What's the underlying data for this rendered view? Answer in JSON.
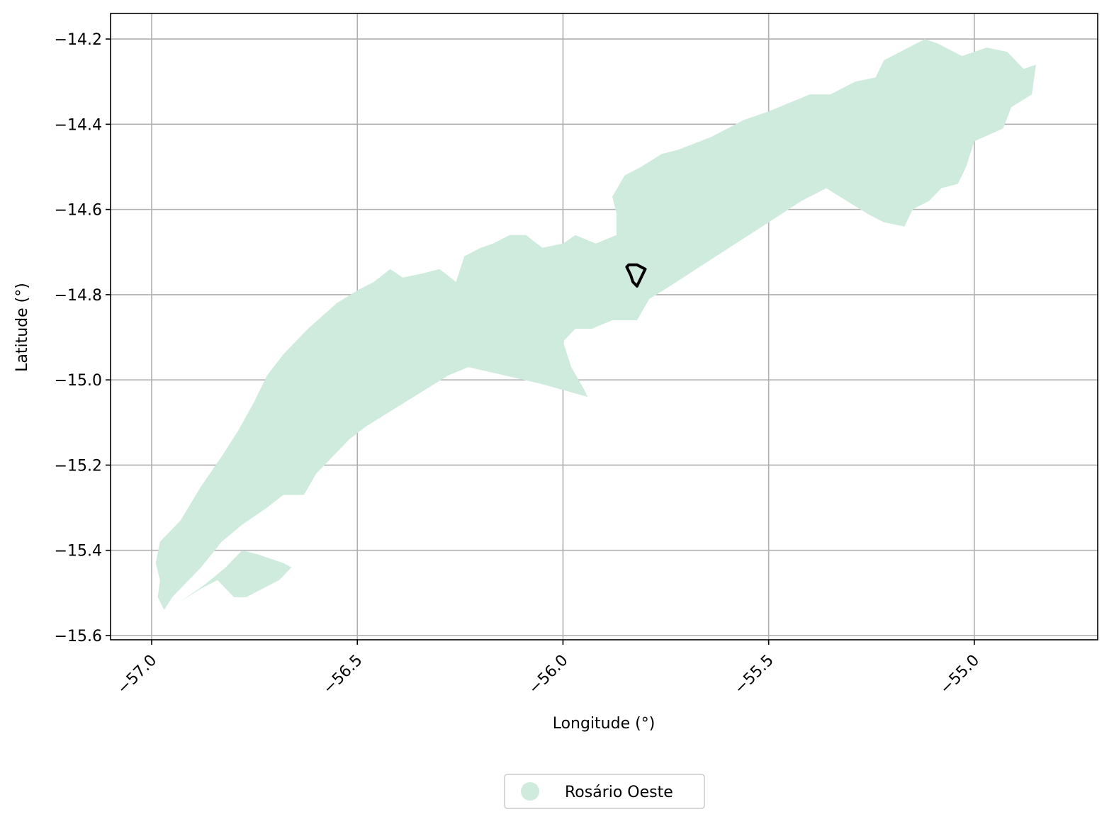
{
  "chart_data": {
    "type": "map",
    "xlabel": "Longitude (°)",
    "ylabel": "Latitude (°)",
    "xlim": [
      -57.1,
      -54.7
    ],
    "ylim": [
      -15.61,
      -14.14
    ],
    "grid": true,
    "x_ticks": [
      -57.0,
      -56.5,
      -56.0,
      -55.5,
      -55.0
    ],
    "x_tick_labels": [
      "−57.0",
      "−56.5",
      "−56.0",
      "−55.5",
      "−55.0"
    ],
    "y_ticks": [
      -14.2,
      -14.4,
      -14.6,
      -14.8,
      -15.0,
      -15.2,
      -15.4,
      -15.6
    ],
    "y_tick_labels": [
      "−14.2",
      "−14.4",
      "−14.6",
      "−14.8",
      "−15.0",
      "−15.2",
      "−15.4",
      "−15.6"
    ],
    "legend": {
      "placement": "bottom-center",
      "entries": [
        {
          "label": "Rosário Oeste",
          "color": "#cfebdd"
        }
      ]
    },
    "regions": [
      {
        "name": "Rosário Oeste",
        "fill": "#cfebdd",
        "polygons": [
          [
            [
              -56.97,
              -15.54
            ],
            [
              -56.985,
              -15.51
            ],
            [
              -56.98,
              -15.47
            ],
            [
              -56.99,
              -15.43
            ],
            [
              -56.98,
              -15.38
            ],
            [
              -56.93,
              -15.33
            ],
            [
              -56.88,
              -15.25
            ],
            [
              -56.83,
              -15.18
            ],
            [
              -56.79,
              -15.12
            ],
            [
              -56.75,
              -15.05
            ],
            [
              -56.72,
              -14.99
            ],
            [
              -56.68,
              -14.94
            ],
            [
              -56.62,
              -14.88
            ],
            [
              -56.55,
              -14.82
            ],
            [
              -56.5,
              -14.79
            ],
            [
              -56.46,
              -14.77
            ],
            [
              -56.42,
              -14.74
            ],
            [
              -56.39,
              -14.76
            ],
            [
              -56.34,
              -14.75
            ],
            [
              -56.3,
              -14.74
            ],
            [
              -56.26,
              -14.77
            ],
            [
              -56.25,
              -14.74
            ],
            [
              -56.24,
              -14.71
            ],
            [
              -56.2,
              -14.69
            ],
            [
              -56.17,
              -14.68
            ],
            [
              -56.13,
              -14.66
            ],
            [
              -56.09,
              -14.66
            ],
            [
              -56.05,
              -14.69
            ],
            [
              -56.0,
              -14.68
            ],
            [
              -55.97,
              -14.66
            ],
            [
              -55.92,
              -14.68
            ],
            [
              -55.87,
              -14.66
            ],
            [
              -55.87,
              -14.61
            ],
            [
              -55.88,
              -14.57
            ],
            [
              -55.85,
              -14.52
            ],
            [
              -55.81,
              -14.5
            ],
            [
              -55.76,
              -14.47
            ],
            [
              -55.72,
              -14.46
            ],
            [
              -55.64,
              -14.43
            ],
            [
              -55.56,
              -14.39
            ],
            [
              -55.5,
              -14.37
            ],
            [
              -55.45,
              -14.35
            ],
            [
              -55.4,
              -14.33
            ],
            [
              -55.35,
              -14.33
            ],
            [
              -55.29,
              -14.3
            ],
            [
              -55.24,
              -14.29
            ],
            [
              -55.22,
              -14.25
            ],
            [
              -55.18,
              -14.23
            ],
            [
              -55.12,
              -14.2
            ],
            [
              -55.09,
              -14.21
            ],
            [
              -55.03,
              -14.24
            ],
            [
              -54.97,
              -14.22
            ],
            [
              -54.92,
              -14.23
            ],
            [
              -54.88,
              -14.27
            ],
            [
              -54.85,
              -14.26
            ],
            [
              -54.86,
              -14.33
            ],
            [
              -54.91,
              -14.36
            ],
            [
              -54.93,
              -14.41
            ],
            [
              -55.0,
              -14.44
            ],
            [
              -55.02,
              -14.5
            ],
            [
              -55.04,
              -14.54
            ],
            [
              -55.08,
              -14.55
            ],
            [
              -55.11,
              -14.58
            ],
            [
              -55.15,
              -14.6
            ],
            [
              -55.17,
              -14.64
            ],
            [
              -55.22,
              -14.63
            ],
            [
              -55.26,
              -14.61
            ],
            [
              -55.31,
              -14.58
            ],
            [
              -55.36,
              -14.55
            ],
            [
              -55.42,
              -14.58
            ],
            [
              -55.5,
              -14.63
            ],
            [
              -55.58,
              -14.68
            ],
            [
              -55.66,
              -14.73
            ],
            [
              -55.74,
              -14.78
            ],
            [
              -55.79,
              -14.81
            ],
            [
              -55.82,
              -14.86
            ],
            [
              -55.88,
              -14.86
            ],
            [
              -55.93,
              -14.88
            ],
            [
              -55.97,
              -14.88
            ],
            [
              -56.0,
              -14.91
            ],
            [
              -55.98,
              -14.97
            ],
            [
              -55.95,
              -15.02
            ],
            [
              -55.94,
              -15.04
            ],
            [
              -56.05,
              -15.01
            ],
            [
              -56.23,
              -14.97
            ],
            [
              -56.28,
              -14.99
            ],
            [
              -56.33,
              -15.02
            ],
            [
              -56.38,
              -15.05
            ],
            [
              -56.43,
              -15.08
            ],
            [
              -56.48,
              -15.11
            ],
            [
              -56.52,
              -15.14
            ],
            [
              -56.56,
              -15.18
            ],
            [
              -56.6,
              -15.22
            ],
            [
              -56.63,
              -15.27
            ],
            [
              -56.68,
              -15.27
            ],
            [
              -56.72,
              -15.3
            ],
            [
              -56.78,
              -15.34
            ],
            [
              -56.83,
              -15.38
            ],
            [
              -56.88,
              -15.44
            ],
            [
              -56.92,
              -15.48
            ],
            [
              -56.95,
              -15.51
            ]
          ],
          [
            [
              -56.93,
              -15.52
            ],
            [
              -56.87,
              -15.48
            ],
            [
              -56.82,
              -15.44
            ],
            [
              -56.78,
              -15.4
            ],
            [
              -56.74,
              -15.41
            ],
            [
              -56.68,
              -15.43
            ],
            [
              -56.66,
              -15.44
            ],
            [
              -56.69,
              -15.47
            ],
            [
              -56.73,
              -15.49
            ],
            [
              -56.77,
              -15.51
            ],
            [
              -56.8,
              -15.51
            ],
            [
              -56.82,
              -15.49
            ],
            [
              -56.84,
              -15.47
            ],
            [
              -56.88,
              -15.49
            ]
          ]
        ]
      },
      {
        "name": "outlined area",
        "stroke": "#000000",
        "fill": "none",
        "polygons": [
          [
            [
              -55.84,
              -14.73
            ],
            [
              -55.82,
              -14.73
            ],
            [
              -55.8,
              -14.74
            ],
            [
              -55.81,
              -14.76
            ],
            [
              -55.82,
              -14.78
            ],
            [
              -55.83,
              -14.77
            ],
            [
              -55.835,
              -14.755
            ],
            [
              -55.845,
              -14.735
            ]
          ]
        ]
      }
    ]
  }
}
